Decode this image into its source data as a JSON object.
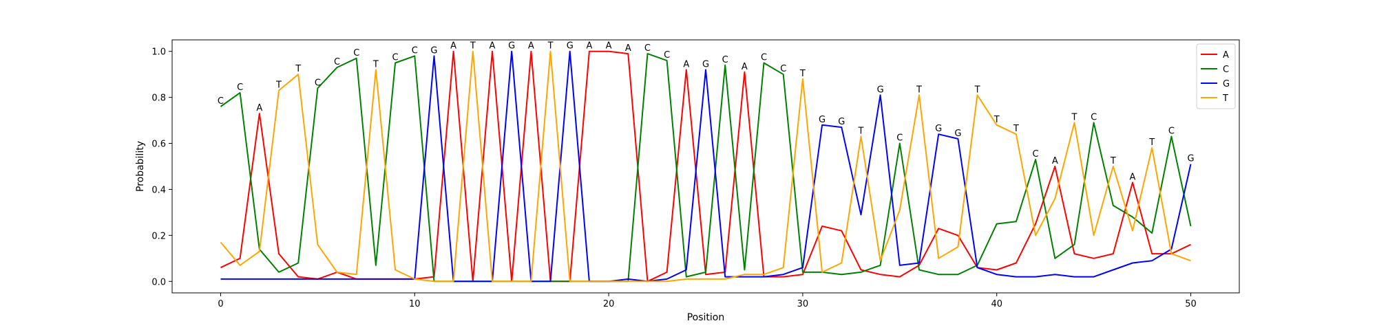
{
  "chart_data": {
    "type": "line",
    "title": "",
    "xlabel": "Position",
    "ylabel": "Probability",
    "xlim": [
      -2.5,
      52.5
    ],
    "ylim": [
      -0.05,
      1.05
    ],
    "xticks": [
      0,
      10,
      20,
      30,
      40,
      50
    ],
    "xtick_labels": [
      "0",
      "10",
      "20",
      "30",
      "40",
      "50"
    ],
    "yticks": [
      0.0,
      0.2,
      0.4,
      0.6,
      0.8,
      1.0
    ],
    "ytick_labels": [
      "0.0",
      "0.2",
      "0.4",
      "0.6",
      "0.8",
      "1.0"
    ],
    "grid": false,
    "legend_position": "top-right",
    "x": [
      0,
      1,
      2,
      3,
      4,
      5,
      6,
      7,
      8,
      9,
      10,
      11,
      12,
      13,
      14,
      15,
      16,
      17,
      18,
      19,
      20,
      21,
      22,
      23,
      24,
      25,
      26,
      27,
      28,
      29,
      30,
      31,
      32,
      33,
      34,
      35,
      36,
      37,
      38,
      39,
      40,
      41,
      42,
      43,
      44,
      45,
      46,
      47,
      48,
      49,
      50
    ],
    "series": [
      {
        "name": "A",
        "color": "#ff0000",
        "values": [
          0.06,
          0.1,
          0.73,
          0.12,
          0.02,
          0.01,
          0.04,
          0.01,
          0.01,
          0.01,
          0.01,
          0.02,
          1.0,
          0.0,
          1.0,
          0.0,
          1.0,
          0.0,
          0.0,
          1.0,
          1.0,
          0.99,
          0.0,
          0.04,
          0.92,
          0.03,
          0.04,
          0.91,
          0.02,
          0.02,
          0.03,
          0.24,
          0.22,
          0.05,
          0.03,
          0.02,
          0.07,
          0.23,
          0.2,
          0.06,
          0.05,
          0.08,
          0.25,
          0.5,
          0.12,
          0.1,
          0.12,
          0.43,
          0.12,
          0.12,
          0.16
        ]
      },
      {
        "name": "C",
        "color": "#008000",
        "values": [
          0.76,
          0.82,
          0.14,
          0.04,
          0.08,
          0.84,
          0.93,
          0.97,
          0.07,
          0.95,
          0.98,
          0.0,
          0.0,
          0.0,
          0.0,
          0.0,
          0.0,
          0.0,
          0.0,
          0.0,
          0.0,
          0.0,
          0.99,
          0.96,
          0.02,
          0.04,
          0.94,
          0.05,
          0.95,
          0.9,
          0.04,
          0.04,
          0.03,
          0.04,
          0.07,
          0.6,
          0.05,
          0.03,
          0.03,
          0.07,
          0.25,
          0.26,
          0.53,
          0.1,
          0.16,
          0.69,
          0.33,
          0.28,
          0.21,
          0.63,
          0.24
        ]
      },
      {
        "name": "G",
        "color": "#0000ff",
        "values": [
          0.01,
          0.01,
          0.01,
          0.01,
          0.01,
          0.01,
          0.01,
          0.01,
          0.01,
          0.01,
          0.01,
          0.98,
          0.0,
          0.0,
          0.0,
          1.0,
          0.0,
          0.0,
          1.0,
          0.0,
          0.0,
          0.01,
          0.0,
          0.01,
          0.05,
          0.92,
          0.02,
          0.02,
          0.02,
          0.03,
          0.06,
          0.68,
          0.67,
          0.29,
          0.81,
          0.07,
          0.08,
          0.64,
          0.62,
          0.06,
          0.03,
          0.02,
          0.02,
          0.03,
          0.02,
          0.02,
          0.05,
          0.08,
          0.09,
          0.14,
          0.51
        ]
      },
      {
        "name": "T",
        "color": "#ffa500",
        "values": [
          0.17,
          0.07,
          0.13,
          0.83,
          0.9,
          0.16,
          0.04,
          0.03,
          0.92,
          0.05,
          0.01,
          0.0,
          0.0,
          1.0,
          0.0,
          0.0,
          0.0,
          1.0,
          0.0,
          0.0,
          0.0,
          0.0,
          0.0,
          0.0,
          0.01,
          0.01,
          0.01,
          0.03,
          0.03,
          0.06,
          0.88,
          0.04,
          0.08,
          0.63,
          0.09,
          0.31,
          0.81,
          0.1,
          0.15,
          0.81,
          0.68,
          0.64,
          0.2,
          0.36,
          0.69,
          0.2,
          0.5,
          0.22,
          0.58,
          0.12,
          0.09
        ]
      }
    ],
    "annotations": [
      {
        "x": 0,
        "y": 0.76,
        "text": "C"
      },
      {
        "x": 1,
        "y": 0.82,
        "text": "C"
      },
      {
        "x": 2,
        "y": 0.73,
        "text": "A"
      },
      {
        "x": 3,
        "y": 0.83,
        "text": "T"
      },
      {
        "x": 4,
        "y": 0.9,
        "text": "T"
      },
      {
        "x": 5,
        "y": 0.84,
        "text": "C"
      },
      {
        "x": 6,
        "y": 0.93,
        "text": "C"
      },
      {
        "x": 7,
        "y": 0.97,
        "text": "C"
      },
      {
        "x": 8,
        "y": 0.92,
        "text": "T"
      },
      {
        "x": 9,
        "y": 0.95,
        "text": "C"
      },
      {
        "x": 10,
        "y": 0.98,
        "text": "C"
      },
      {
        "x": 11,
        "y": 0.98,
        "text": "G"
      },
      {
        "x": 12,
        "y": 1.0,
        "text": "A"
      },
      {
        "x": 13,
        "y": 1.0,
        "text": "T"
      },
      {
        "x": 14,
        "y": 1.0,
        "text": "A"
      },
      {
        "x": 15,
        "y": 1.0,
        "text": "G"
      },
      {
        "x": 16,
        "y": 1.0,
        "text": "A"
      },
      {
        "x": 17,
        "y": 1.0,
        "text": "T"
      },
      {
        "x": 18,
        "y": 1.0,
        "text": "G"
      },
      {
        "x": 19,
        "y": 1.0,
        "text": "A"
      },
      {
        "x": 20,
        "y": 1.0,
        "text": "A"
      },
      {
        "x": 21,
        "y": 0.99,
        "text": "A"
      },
      {
        "x": 22,
        "y": 0.99,
        "text": "C"
      },
      {
        "x": 23,
        "y": 0.96,
        "text": "C"
      },
      {
        "x": 24,
        "y": 0.92,
        "text": "A"
      },
      {
        "x": 25,
        "y": 0.92,
        "text": "G"
      },
      {
        "x": 26,
        "y": 0.94,
        "text": "C"
      },
      {
        "x": 27,
        "y": 0.91,
        "text": "A"
      },
      {
        "x": 28,
        "y": 0.95,
        "text": "C"
      },
      {
        "x": 29,
        "y": 0.9,
        "text": "C"
      },
      {
        "x": 30,
        "y": 0.88,
        "text": "T"
      },
      {
        "x": 31,
        "y": 0.68,
        "text": "G"
      },
      {
        "x": 32,
        "y": 0.67,
        "text": "G"
      },
      {
        "x": 33,
        "y": 0.63,
        "text": "T"
      },
      {
        "x": 34,
        "y": 0.81,
        "text": "G"
      },
      {
        "x": 35,
        "y": 0.6,
        "text": "C"
      },
      {
        "x": 36,
        "y": 0.81,
        "text": "T"
      },
      {
        "x": 37,
        "y": 0.64,
        "text": "G"
      },
      {
        "x": 38,
        "y": 0.62,
        "text": "G"
      },
      {
        "x": 39,
        "y": 0.81,
        "text": "T"
      },
      {
        "x": 40,
        "y": 0.68,
        "text": "T"
      },
      {
        "x": 41,
        "y": 0.64,
        "text": "T"
      },
      {
        "x": 42,
        "y": 0.53,
        "text": "C"
      },
      {
        "x": 43,
        "y": 0.5,
        "text": "A"
      },
      {
        "x": 44,
        "y": 0.69,
        "text": "T"
      },
      {
        "x": 45,
        "y": 0.69,
        "text": "C"
      },
      {
        "x": 46,
        "y": 0.5,
        "text": "T"
      },
      {
        "x": 47,
        "y": 0.43,
        "text": "A"
      },
      {
        "x": 48,
        "y": 0.58,
        "text": "T"
      },
      {
        "x": 49,
        "y": 0.63,
        "text": "C"
      },
      {
        "x": 50,
        "y": 0.51,
        "text": "G"
      }
    ]
  }
}
